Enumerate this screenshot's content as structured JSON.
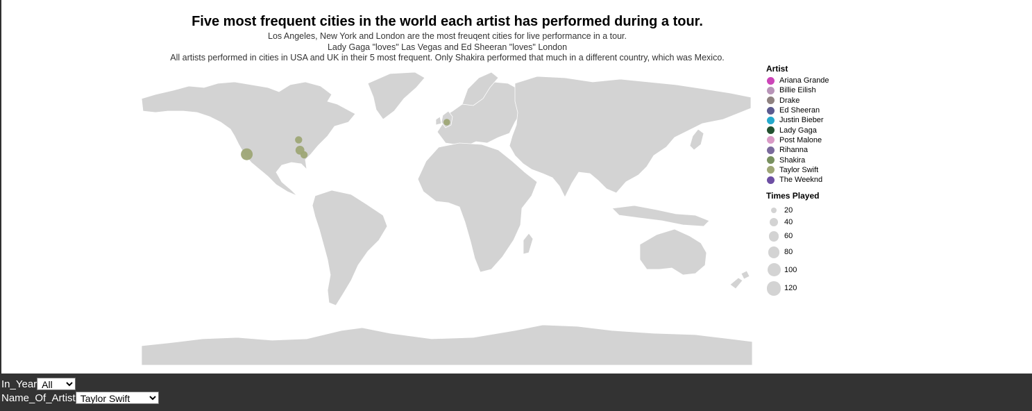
{
  "title": "Five most frequent cities in the world each artist has performed during a tour.",
  "subtitle": [
    "Los Angeles, New York and London are the most freuqent cities for live performance in a tour.",
    "Lady Gaga \"loves\" Las Vegas and Ed Sheeran \"loves\" London",
    "All artists performed in cities in USA and UK in their 5 most frequent. Only Shakira performed that much in a different country, which was Mexico."
  ],
  "legend_artist": {
    "title": "Artist",
    "items": [
      {
        "label": "Ariana Grande",
        "color": "#cc44b8"
      },
      {
        "label": "Billie Eilish",
        "color": "#b894b8"
      },
      {
        "label": "Drake",
        "color": "#8f8280"
      },
      {
        "label": "Ed Sheeran",
        "color": "#5c5a8f"
      },
      {
        "label": "Justin Bieber",
        "color": "#25a9cc"
      },
      {
        "label": "Lady Gaga",
        "color": "#235230"
      },
      {
        "label": "Post Malone",
        "color": "#d99ac6"
      },
      {
        "label": "Rihanna",
        "color": "#7a6a9c"
      },
      {
        "label": "Shakira",
        "color": "#78905f"
      },
      {
        "label": "Taylor Swift",
        "color": "#9ea676"
      },
      {
        "label": "The Weeknd",
        "color": "#6d4fa3"
      }
    ]
  },
  "legend_size": {
    "title": "Times Played",
    "items": [
      {
        "label": "20",
        "value": 20
      },
      {
        "label": "40",
        "value": 40
      },
      {
        "label": "60",
        "value": 60
      },
      {
        "label": "80",
        "value": 80
      },
      {
        "label": "100",
        "value": 100
      },
      {
        "label": "120",
        "value": 120
      }
    ]
  },
  "map_points": [
    {
      "artist": "Taylor Swift",
      "lon": -118.2,
      "lat": 34.0,
      "times_played": 80
    },
    {
      "artist": "Taylor Swift",
      "lon": -87.6,
      "lat": 41.9,
      "times_played": 30
    },
    {
      "artist": "Taylor Swift",
      "lon": -86.8,
      "lat": 36.2,
      "times_played": 45
    },
    {
      "artist": "Taylor Swift",
      "lon": -84.4,
      "lat": 33.7,
      "times_played": 30
    },
    {
      "artist": "Taylor Swift",
      "lon": -0.1,
      "lat": 51.5,
      "times_played": 25
    }
  ],
  "controls": {
    "year_label": "In_Year",
    "year_value": "All",
    "year_options": [
      "All"
    ],
    "artist_label": "Name_Of_Artist",
    "artist_value": "Taylor Swift",
    "artist_options": [
      "Taylor Swift"
    ]
  },
  "colors": {
    "land": "#d3d3d3",
    "controls_bg": "#333333"
  }
}
